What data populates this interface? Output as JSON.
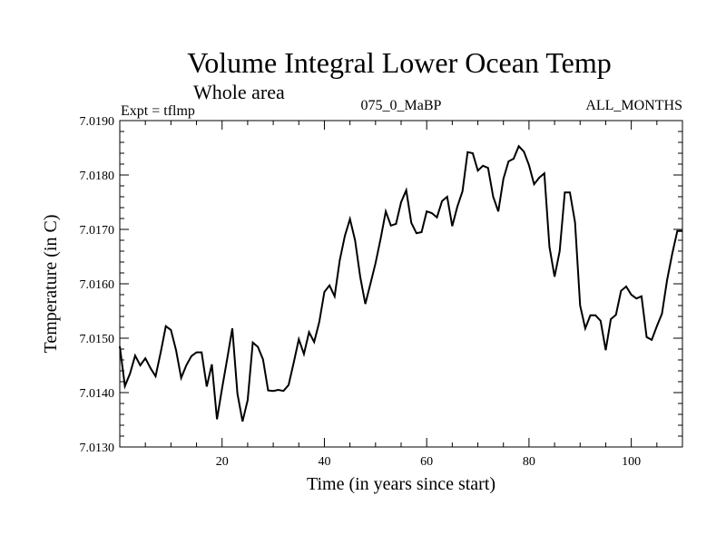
{
  "chart_data": {
    "type": "line",
    "title": "Volume Integral Lower Ocean Temp",
    "subtitle": "Whole area",
    "expt_label": "Expt = tflmp",
    "run_label": "075_0_MaBP",
    "months_label": "ALL_MONTHS",
    "xlabel": "Time (in years since start)",
    "ylabel": "Temperature (in C)",
    "xlim": [
      0,
      110
    ],
    "ylim": [
      7.013,
      7.019
    ],
    "x_ticks": [
      20,
      40,
      60,
      80,
      100
    ],
    "y_ticks": [
      "7.0130",
      "7.0140",
      "7.0150",
      "7.0160",
      "7.0170",
      "7.0180",
      "7.0190"
    ],
    "series": [
      {
        "name": "tflmp",
        "color": "#000000",
        "x": [
          0,
          1,
          2,
          3,
          4,
          5,
          6,
          7,
          8,
          9,
          10,
          11,
          12,
          13,
          14,
          15,
          16,
          17,
          18,
          19,
          20,
          21,
          22,
          23,
          24,
          25,
          26,
          27,
          28,
          29,
          30,
          31,
          32,
          33,
          34,
          35,
          36,
          37,
          38,
          39,
          40,
          41,
          42,
          43,
          44,
          45,
          46,
          47,
          48,
          49,
          50,
          51,
          52,
          53,
          54,
          55,
          56,
          57,
          58,
          59,
          60,
          61,
          62,
          63,
          64,
          65,
          66,
          67,
          68,
          69,
          70,
          71,
          72,
          73,
          74,
          75,
          76,
          77,
          78,
          79,
          80,
          81,
          82,
          83,
          84,
          85,
          86,
          87,
          88,
          89,
          90,
          91,
          92,
          93,
          94,
          95,
          96,
          97,
          98,
          99,
          100,
          101,
          102,
          103,
          104,
          105,
          106,
          107,
          108,
          109,
          110
        ],
        "values": [
          7.01485,
          7.01412,
          7.01435,
          7.01468,
          7.0145,
          7.01463,
          7.01445,
          7.0143,
          7.01474,
          7.01522,
          7.01515,
          7.01478,
          7.01427,
          7.0145,
          7.01467,
          7.01474,
          7.01474,
          7.01411,
          7.01452,
          7.01351,
          7.01408,
          7.01462,
          7.01518,
          7.01398,
          7.01347,
          7.01386,
          7.01492,
          7.01484,
          7.01461,
          7.01404,
          7.01403,
          7.01405,
          7.01403,
          7.01414,
          7.01455,
          7.01498,
          7.01471,
          7.01511,
          7.01493,
          7.0153,
          7.01585,
          7.01597,
          7.01577,
          7.01643,
          7.01688,
          7.01719,
          7.0168,
          7.01613,
          7.01563,
          7.016,
          7.01638,
          7.01683,
          7.01733,
          7.01707,
          7.0171,
          7.0175,
          7.01772,
          7.01712,
          7.01693,
          7.01695,
          7.01733,
          7.0173,
          7.01722,
          7.01752,
          7.0176,
          7.01706,
          7.01742,
          7.0177,
          7.01842,
          7.0184,
          7.01808,
          7.01817,
          7.01813,
          7.0176,
          7.01733,
          7.01793,
          7.01825,
          7.0183,
          7.01853,
          7.01843,
          7.01818,
          7.01783,
          7.01795,
          7.01803,
          7.01668,
          7.01613,
          7.0166,
          7.01768,
          7.01768,
          7.01713,
          7.0156,
          7.01518,
          7.01542,
          7.01542,
          7.01532,
          7.01478,
          7.01535,
          7.01543,
          7.01587,
          7.01595,
          7.0158,
          7.01573,
          7.01577,
          7.01502,
          7.01497,
          7.01522,
          7.01545,
          7.01607,
          7.01655,
          7.01697,
          7.01697
        ]
      }
    ]
  }
}
